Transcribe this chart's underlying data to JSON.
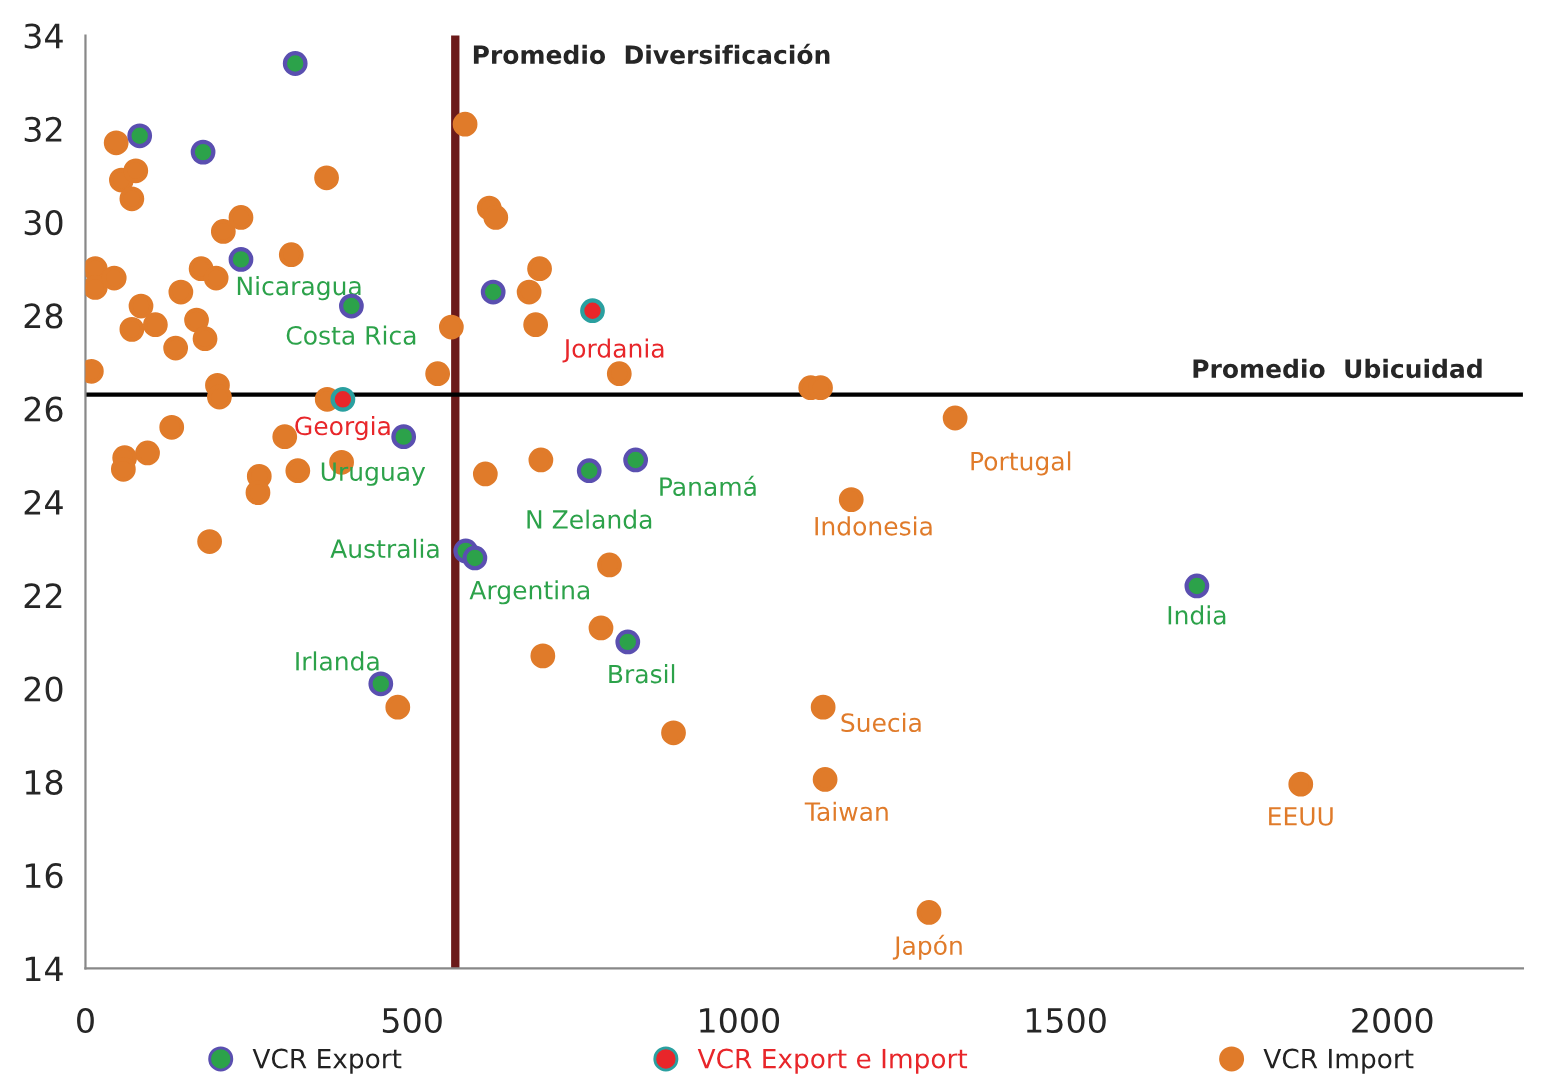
{
  "chart_data": {
    "type": "scatter",
    "xlim": [
      0,
      2200
    ],
    "ylim": [
      14,
      34
    ],
    "xticks": [
      0,
      500,
      1000,
      1500,
      2000
    ],
    "yticks": [
      14,
      16,
      18,
      20,
      22,
      24,
      26,
      28,
      30,
      32,
      34
    ],
    "grid": false,
    "legend": "bottom",
    "marker": "circle",
    "series": [
      {
        "name": "VCR Export",
        "color": "#2ca24a",
        "x": [
          321,
          83,
          180,
          238,
          407,
          487,
          624,
          771,
          842,
          582,
          596,
          452,
          830,
          1701
        ],
        "values": [
          33.4,
          31.85,
          31.5,
          29.2,
          28.2,
          25.4,
          28.5,
          24.67,
          24.9,
          22.95,
          22.8,
          20.1,
          21.0,
          22.2
        ]
      },
      {
        "name": "VCR Export e Import",
        "color": "#e8262a",
        "x": [
          776,
          394
        ],
        "values": [
          28.1,
          26.2
        ]
      },
      {
        "name": "VCR Import",
        "color": "#e07b2a",
        "x": [
          9,
          15,
          15,
          44,
          47,
          55,
          77,
          71,
          77,
          85,
          71,
          107,
          138,
          146,
          170,
          183,
          177,
          200,
          211,
          238,
          315,
          369,
          202,
          205,
          370,
          132,
          95,
          60,
          58,
          305,
          266,
          264,
          325,
          392,
          539,
          560,
          581,
          618,
          628,
          695,
          679,
          689,
          817,
          612,
          697,
          190,
          802,
          789,
          700,
          478,
          900,
          1095,
          1110,
          1125,
          1331,
          1172,
          1129,
          1132,
          1860,
          1291
        ],
        "values": [
          26.8,
          29.0,
          28.6,
          28.8,
          31.7,
          30.9,
          31.1,
          30.5,
          null,
          28.2,
          27.7,
          27.8,
          27.3,
          28.5,
          27.9,
          27.5,
          29.0,
          28.8,
          29.8,
          30.1,
          29.3,
          30.95,
          26.5,
          26.25,
          26.2,
          25.6,
          25.05,
          24.95,
          24.7,
          25.4,
          24.55,
          24.2,
          24.67,
          24.85,
          26.75,
          27.75,
          32.1,
          30.3,
          30.1,
          29.0,
          28.5,
          27.8,
          26.75,
          24.6,
          24.9,
          23.15,
          22.65,
          21.3,
          20.7,
          19.6,
          19.05,
          null,
          26.45,
          26.45,
          25.8,
          24.05,
          19.6,
          18.05,
          17.95,
          15.2
        ]
      }
    ],
    "ref_lines": [
      {
        "axis": "x",
        "value": 566,
        "label": "Promedio  Diversificación",
        "color": "#6b1a1a"
      },
      {
        "axis": "y",
        "value": 26.3,
        "label": "Promedio  Ubicuidad",
        "color": "#000000"
      }
    ],
    "annotations": [
      {
        "text": "Nicaragua",
        "x": 238,
        "y": 29.2
      },
      {
        "text": "Costa Rica",
        "x": 407,
        "y": 28.2
      },
      {
        "text": "Jordania",
        "x": 776,
        "y": 28.1
      },
      {
        "text": "Georgia",
        "x": 394,
        "y": 26.2
      },
      {
        "text": "Uruguay",
        "x": 487,
        "y": 25.4
      },
      {
        "text": "Panamá",
        "x": 842,
        "y": 24.9
      },
      {
        "text": "N Zelanda",
        "x": 771,
        "y": 24.67
      },
      {
        "text": "Australia",
        "x": 582,
        "y": 22.95
      },
      {
        "text": "Argentina",
        "x": 596,
        "y": 22.8
      },
      {
        "text": "Irlanda",
        "x": 452,
        "y": 20.1
      },
      {
        "text": "Brasil",
        "x": 830,
        "y": 21.0
      },
      {
        "text": "India",
        "x": 1701,
        "y": 22.2
      },
      {
        "text": "Portugal",
        "x": 1331,
        "y": 25.8
      },
      {
        "text": "Indonesia",
        "x": 1172,
        "y": 24.05
      },
      {
        "text": "Suecia",
        "x": 1129,
        "y": 19.6
      },
      {
        "text": "Taiwan",
        "x": 1132,
        "y": 18.05
      },
      {
        "text": "EEUU",
        "x": 1860,
        "y": 17.95
      },
      {
        "text": "Japón",
        "x": 1291,
        "y": 15.2
      }
    ]
  }
}
